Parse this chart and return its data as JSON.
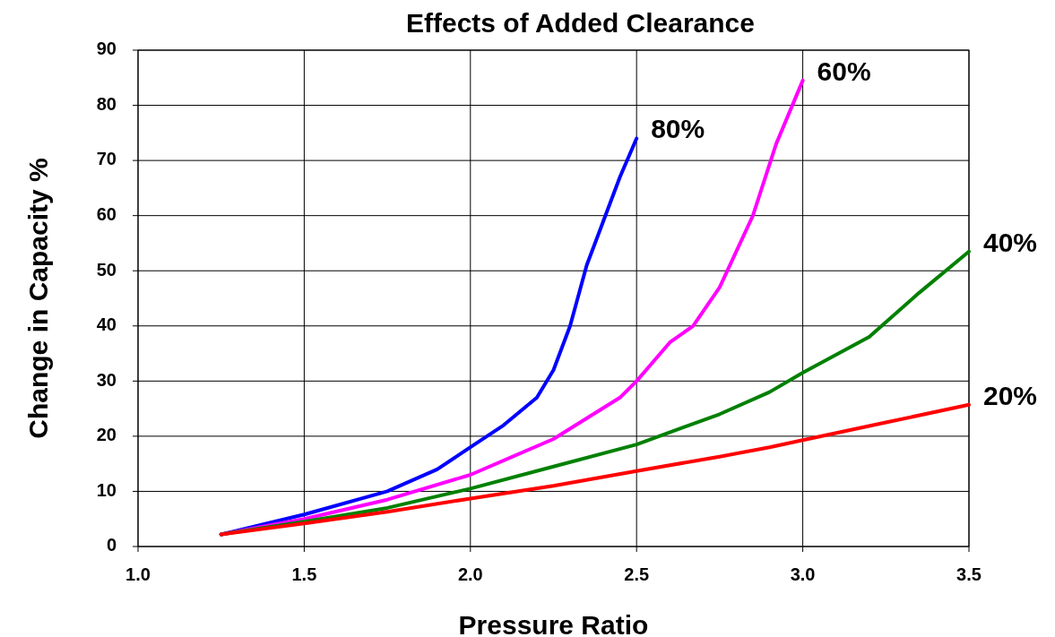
{
  "chart_data": {
    "type": "line",
    "title": "Effects of Added Clearance",
    "xlabel": "Pressure Ratio",
    "ylabel": "Change in Capacity %",
    "xlim": [
      1.0,
      3.5
    ],
    "xticks": [
      {
        "value": 1.0,
        "label": "1.0"
      },
      {
        "value": 1.5,
        "label": "1.5"
      },
      {
        "value": 2.0,
        "label": "2.0"
      },
      {
        "value": 2.5,
        "label": "2.5"
      },
      {
        "value": 3.0,
        "label": "3.0"
      },
      {
        "value": 3.5,
        "label": "3.5"
      }
    ],
    "ylim": [
      0,
      90
    ],
    "yticks": [
      0,
      10,
      20,
      30,
      40,
      50,
      60,
      70,
      80,
      90
    ],
    "grid": true,
    "legend": false,
    "marker": "none",
    "line_style": "solid",
    "series": [
      {
        "name": "80%",
        "color": "#0000ff",
        "x": [
          1.25,
          1.5,
          1.75,
          1.9,
          2.0,
          2.1,
          2.2,
          2.25,
          2.3,
          2.35,
          2.4,
          2.45,
          2.5
        ],
        "values": [
          2.2,
          5.8,
          10,
          14,
          18,
          22,
          27,
          32,
          40,
          51,
          59,
          67,
          74
        ]
      },
      {
        "name": "60%",
        "color": "#ff00ff",
        "x": [
          1.25,
          1.5,
          1.75,
          2.0,
          2.25,
          2.45,
          2.5,
          2.6,
          2.67,
          2.75,
          2.85,
          2.92,
          3.0
        ],
        "values": [
          2.2,
          5,
          8.5,
          13,
          19.5,
          27,
          30,
          37,
          40,
          47,
          60,
          73,
          84.5
        ]
      },
      {
        "name": "40%",
        "color": "#008000",
        "x": [
          1.25,
          1.5,
          1.75,
          2.0,
          2.25,
          2.5,
          2.75,
          2.9,
          3.0,
          3.2,
          3.35,
          3.5
        ],
        "values": [
          2.2,
          4.5,
          7,
          10.5,
          14.5,
          18.5,
          24,
          28,
          31.5,
          38,
          46,
          53.5
        ]
      },
      {
        "name": "20%",
        "color": "#ff0000",
        "x": [
          1.25,
          1.5,
          1.75,
          2.0,
          2.25,
          2.5,
          2.75,
          2.9,
          3.0,
          3.25,
          3.5
        ],
        "values": [
          2.2,
          4.2,
          6.3,
          8.7,
          11,
          13.7,
          16.3,
          18,
          19.3,
          22.5,
          25.7
        ]
      }
    ]
  }
}
